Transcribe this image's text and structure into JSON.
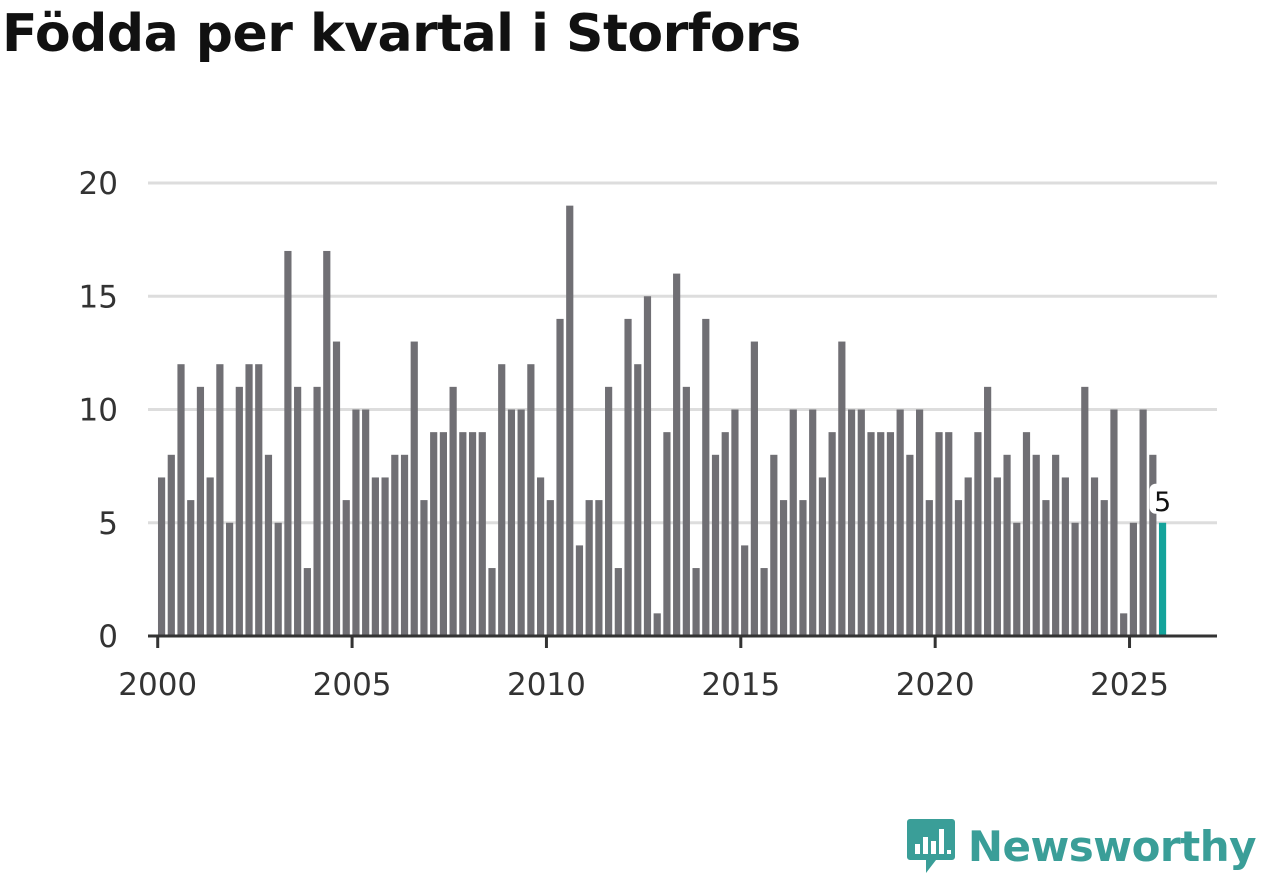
{
  "page": {
    "title": "Födda per kvartal i Storfors"
  },
  "brand": {
    "name": "Newsworthy",
    "color": "#3a9e98"
  },
  "chart_data": {
    "type": "bar",
    "title": "Födda per kvartal i Storfors",
    "xlabel": "",
    "ylabel": "",
    "x_start_year": 2000,
    "periods_per_year": 4,
    "xlim": [
      1999.75,
      2027.25
    ],
    "xticks": [
      2000,
      2005,
      2010,
      2015,
      2020,
      2025
    ],
    "xtick_labels": [
      "2000",
      "2005",
      "2010",
      "2015",
      "2020",
      "2025"
    ],
    "ylim": [
      0,
      20
    ],
    "yticks": [
      0,
      5,
      10,
      15,
      20
    ],
    "ytick_labels": [
      "0",
      "5",
      "10",
      "15",
      "20"
    ],
    "grid": true,
    "bar_color": "#706f74",
    "highlight_color": "#14a39b",
    "highlight_last": true,
    "last_value_label": "5",
    "values": [
      7,
      8,
      12,
      6,
      11,
      7,
      12,
      5,
      11,
      12,
      12,
      8,
      5,
      17,
      11,
      3,
      11,
      17,
      13,
      6,
      10,
      10,
      7,
      7,
      8,
      8,
      13,
      6,
      9,
      9,
      11,
      9,
      9,
      9,
      3,
      12,
      10,
      10,
      12,
      7,
      6,
      14,
      19,
      4,
      6,
      6,
      11,
      3,
      14,
      12,
      15,
      1,
      9,
      16,
      11,
      3,
      14,
      8,
      9,
      10,
      4,
      13,
      3,
      8,
      6,
      10,
      6,
      10,
      7,
      9,
      13,
      10,
      10,
      9,
      9,
      9,
      10,
      8,
      10,
      6,
      9,
      9,
      6,
      7,
      9,
      11,
      7,
      8,
      5,
      9,
      8,
      6,
      8,
      7,
      5,
      11,
      7,
      6,
      10,
      1,
      5,
      10,
      8,
      5
    ]
  }
}
